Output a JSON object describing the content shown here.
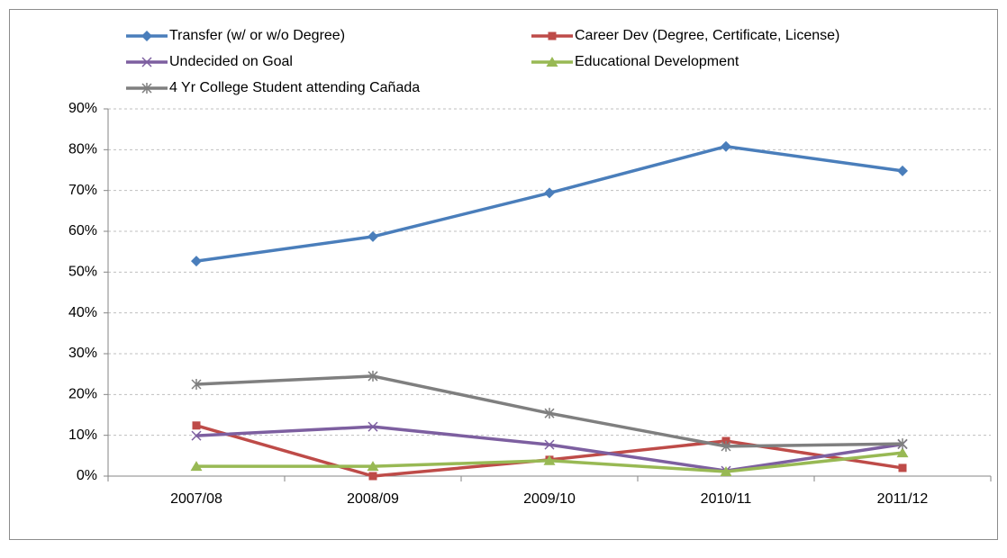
{
  "chart_data": {
    "type": "line",
    "categories": [
      "2007/08",
      "2008/09",
      "2009/10",
      "2010/11",
      "2011/12"
    ],
    "series": [
      {
        "name": "Transfer (w/ or w/o Degree)",
        "color": "#4a7ebb",
        "marker": "diamond",
        "values": [
          52.7,
          58.7,
          69.4,
          80.8,
          74.8
        ]
      },
      {
        "name": "Career Dev (Degree, Certificate, License)",
        "color": "#be4b48",
        "marker": "square",
        "values": [
          12.4,
          0,
          4.0,
          8.6,
          2.0
        ]
      },
      {
        "name": "Undecided on Goal",
        "color": "#7d5fa0",
        "marker": "x",
        "values": [
          9.9,
          12.1,
          7.7,
          1.3,
          7.8
        ]
      },
      {
        "name": "Educational Development",
        "color": "#98b954",
        "marker": "triangle",
        "values": [
          2.4,
          2.4,
          3.8,
          1.1,
          5.7
        ]
      },
      {
        "name": "4 Yr College Student attending Cañada",
        "color": "#7f7f7f",
        "marker": "asterisk",
        "values": [
          22.5,
          24.5,
          15.4,
          7.3,
          7.9
        ]
      }
    ],
    "ylim": [
      0,
      90
    ],
    "yticks": [
      {
        "value": 0,
        "label": "0%"
      },
      {
        "value": 10,
        "label": "10%"
      },
      {
        "value": 20,
        "label": "20%"
      },
      {
        "value": 30,
        "label": "30%"
      },
      {
        "value": 40,
        "label": "40%"
      },
      {
        "value": 50,
        "label": "50%"
      },
      {
        "value": 60,
        "label": "60%"
      },
      {
        "value": 70,
        "label": "70%"
      },
      {
        "value": 80,
        "label": "80%"
      },
      {
        "value": 90,
        "label": "90%"
      }
    ],
    "grid": true,
    "legend": "top"
  }
}
